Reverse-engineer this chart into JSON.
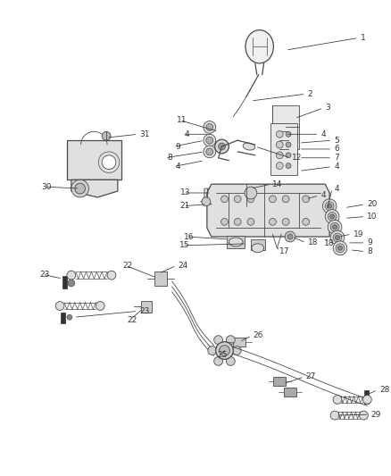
{
  "bg_color": "#ffffff",
  "line_color": "#4a4a4a",
  "label_color": "#333333",
  "label_fontsize": 6.5,
  "figsize": [
    4.38,
    5.33
  ],
  "dpi": 100
}
